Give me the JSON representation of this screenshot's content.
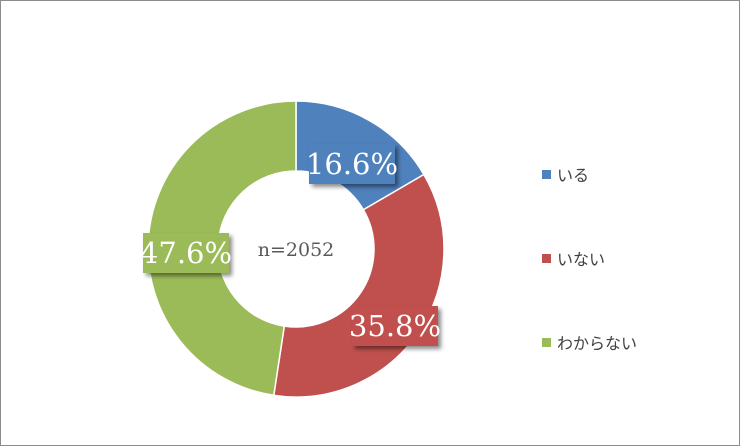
{
  "chart_data": {
    "type": "pie",
    "style": "donut",
    "center_label": "n=2052",
    "slices": [
      {
        "label": "いる",
        "value": 16.6,
        "display": "16.6%",
        "color": "#4f81bd"
      },
      {
        "label": "いない",
        "value": 35.8,
        "display": "35.8%",
        "color": "#c0504d"
      },
      {
        "label": "わからない",
        "value": 47.6,
        "display": "47.6%",
        "color": "#9bbb59"
      }
    ],
    "legend_placement": "right"
  }
}
